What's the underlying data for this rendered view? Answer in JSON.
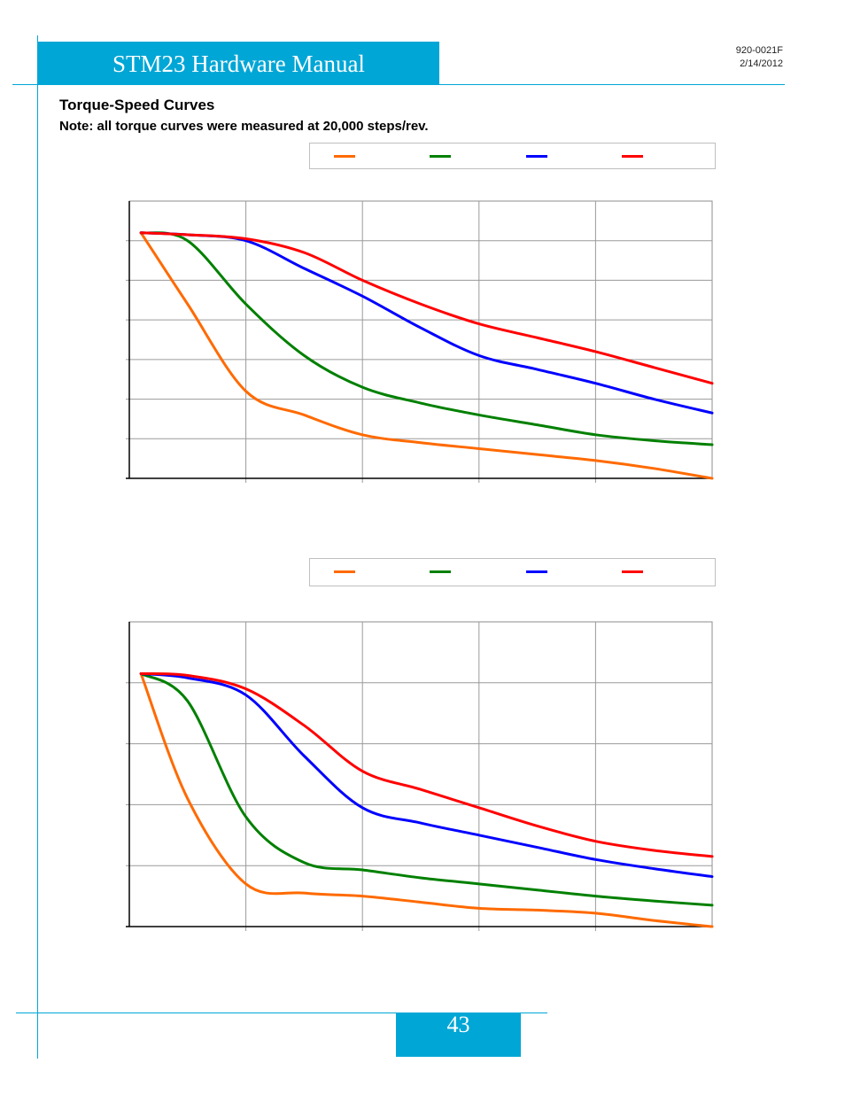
{
  "header": {
    "title": "STM23 Hardware Manual",
    "doc_number": "920-0021F",
    "date": "2/14/2012"
  },
  "section": {
    "heading": "Torque-Speed Curves",
    "note": "Note: all torque curves were measured at 20,000 steps/rev."
  },
  "footer": {
    "page_number": "43"
  },
  "colors": {
    "accent": "#00a6d6",
    "series": [
      "#ff6a00",
      "#008000",
      "#0000ff",
      "#ff0000"
    ]
  },
  "chart_data": [
    {
      "type": "line",
      "title": "",
      "xlabel": "",
      "ylabel": "",
      "x_ticks": 5,
      "y_ticks": 7,
      "xlim": [
        0,
        5
      ],
      "ylim": [
        0,
        7
      ],
      "grid": true,
      "legend": "top",
      "series": [
        {
          "color": "#ff6a00",
          "x": [
            0.1,
            0.5,
            1.0,
            1.5,
            2.0,
            2.5,
            3.0,
            3.5,
            4.0,
            4.5,
            5.0
          ],
          "y": [
            6.2,
            4.4,
            2.2,
            1.6,
            1.1,
            0.9,
            0.75,
            0.6,
            0.45,
            0.25,
            0.0
          ]
        },
        {
          "color": "#008000",
          "x": [
            0.1,
            0.5,
            1.0,
            1.5,
            2.0,
            2.5,
            3.0,
            3.5,
            4.0,
            4.5,
            5.0
          ],
          "y": [
            6.2,
            6.0,
            4.4,
            3.1,
            2.3,
            1.9,
            1.6,
            1.35,
            1.1,
            0.95,
            0.85
          ]
        },
        {
          "color": "#0000ff",
          "x": [
            0.1,
            0.5,
            1.0,
            1.5,
            2.0,
            2.5,
            3.0,
            3.5,
            4.0,
            4.5,
            5.0
          ],
          "y": [
            6.2,
            6.15,
            6.0,
            5.3,
            4.6,
            3.8,
            3.1,
            2.75,
            2.4,
            2.0,
            1.65
          ]
        },
        {
          "color": "#ff0000",
          "x": [
            0.1,
            0.5,
            1.0,
            1.5,
            2.0,
            2.5,
            3.0,
            3.5,
            4.0,
            4.5,
            5.0
          ],
          "y": [
            6.2,
            6.15,
            6.05,
            5.7,
            5.0,
            4.4,
            3.9,
            3.55,
            3.2,
            2.8,
            2.4
          ]
        }
      ]
    },
    {
      "type": "line",
      "title": "",
      "xlabel": "",
      "ylabel": "",
      "x_ticks": 5,
      "y_ticks": 5,
      "xlim": [
        0,
        5
      ],
      "ylim": [
        0,
        5
      ],
      "grid": true,
      "legend": "top",
      "series": [
        {
          "color": "#ff6a00",
          "x": [
            0.1,
            0.5,
            1.0,
            1.5,
            2.0,
            2.5,
            3.0,
            3.5,
            4.0,
            4.5,
            5.0
          ],
          "y": [
            4.15,
            2.1,
            0.7,
            0.55,
            0.5,
            0.4,
            0.3,
            0.27,
            0.22,
            0.1,
            0.0
          ]
        },
        {
          "color": "#008000",
          "x": [
            0.1,
            0.5,
            1.0,
            1.5,
            2.0,
            2.5,
            3.0,
            3.5,
            4.0,
            4.5,
            5.0
          ],
          "y": [
            4.15,
            3.7,
            1.8,
            1.05,
            0.93,
            0.8,
            0.7,
            0.6,
            0.5,
            0.42,
            0.35
          ]
        },
        {
          "color": "#0000ff",
          "x": [
            0.1,
            0.5,
            1.0,
            1.5,
            2.0,
            2.5,
            3.0,
            3.5,
            4.0,
            4.5,
            5.0
          ],
          "y": [
            4.15,
            4.08,
            3.8,
            2.8,
            1.95,
            1.7,
            1.5,
            1.3,
            1.1,
            0.95,
            0.82
          ]
        },
        {
          "color": "#ff0000",
          "x": [
            0.1,
            0.5,
            1.0,
            1.5,
            2.0,
            2.5,
            3.0,
            3.5,
            4.0,
            4.5,
            5.0
          ],
          "y": [
            4.15,
            4.12,
            3.9,
            3.3,
            2.55,
            2.25,
            1.95,
            1.65,
            1.4,
            1.25,
            1.15
          ]
        }
      ]
    }
  ]
}
